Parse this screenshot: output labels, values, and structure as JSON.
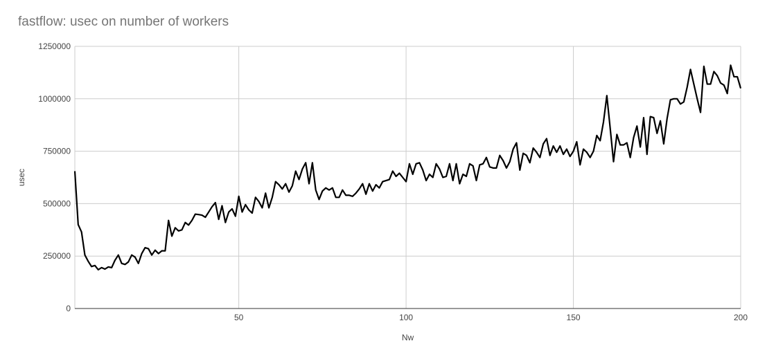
{
  "chart_data": {
    "type": "line",
    "title": "fastflow: usec on number of workers",
    "xlabel": "Nw",
    "ylabel": "usec",
    "xlim": [
      1,
      200
    ],
    "ylim": [
      0,
      1250000
    ],
    "x_ticks": [
      50,
      100,
      150,
      200
    ],
    "y_ticks": [
      0,
      250000,
      500000,
      750000,
      1000000,
      1250000
    ],
    "grid": true,
    "line_color": "#000000",
    "series": [
      {
        "x": [
          1,
          2,
          3,
          4,
          5,
          6,
          7,
          8,
          9,
          10,
          11,
          12,
          13,
          14,
          15,
          16,
          17,
          18,
          19,
          20,
          21,
          22,
          23,
          24,
          25,
          26,
          27,
          28,
          29,
          30,
          31,
          32,
          33,
          34,
          35,
          36,
          37,
          38,
          39,
          40,
          41,
          42,
          43,
          44,
          45,
          46,
          47,
          48,
          49,
          50,
          51,
          52,
          53,
          54,
          55,
          56,
          57,
          58,
          59,
          60,
          61,
          62,
          63,
          64,
          65,
          66,
          67,
          68,
          69,
          70,
          71,
          72,
          73,
          74,
          75,
          76,
          77,
          78,
          79,
          80,
          81,
          82,
          83,
          84,
          85,
          86,
          87,
          88,
          89,
          90,
          91,
          92,
          93,
          94,
          95,
          96,
          97,
          98,
          99,
          100,
          101,
          102,
          103,
          104,
          105,
          106,
          107,
          108,
          109,
          110,
          111,
          112,
          113,
          114,
          115,
          116,
          117,
          118,
          119,
          120,
          121,
          122,
          123,
          124,
          125,
          126,
          127,
          128,
          129,
          130,
          131,
          132,
          133,
          134,
          135,
          136,
          137,
          138,
          139,
          140,
          141,
          142,
          143,
          144,
          145,
          146,
          147,
          148,
          149,
          150,
          151,
          152,
          153,
          154,
          155,
          156,
          157,
          158,
          159,
          160,
          161,
          162,
          163,
          164,
          165,
          166,
          167,
          168,
          169,
          170,
          171,
          172,
          173,
          174,
          175,
          176,
          177,
          178,
          179,
          180,
          181,
          182,
          183,
          184,
          185,
          186,
          187,
          188,
          189,
          190,
          191,
          192,
          193,
          194,
          195,
          196,
          197,
          198,
          199,
          200
        ],
        "values": [
          655000,
          400000,
          365000,
          255000,
          225000,
          200000,
          205000,
          185000,
          195000,
          188000,
          198000,
          195000,
          230000,
          255000,
          215000,
          210000,
          222000,
          255000,
          245000,
          215000,
          262000,
          290000,
          285000,
          255000,
          278000,
          262000,
          275000,
          275000,
          420000,
          345000,
          385000,
          370000,
          375000,
          410000,
          398000,
          420000,
          450000,
          448000,
          445000,
          435000,
          460000,
          485000,
          505000,
          425000,
          490000,
          410000,
          460000,
          475000,
          440000,
          535000,
          460000,
          495000,
          470000,
          455000,
          530000,
          510000,
          480000,
          550000,
          480000,
          530000,
          605000,
          590000,
          570000,
          595000,
          555000,
          585000,
          655000,
          615000,
          665000,
          695000,
          595000,
          695000,
          565000,
          520000,
          560000,
          575000,
          565000,
          575000,
          530000,
          530000,
          565000,
          540000,
          540000,
          535000,
          550000,
          570000,
          595000,
          545000,
          595000,
          560000,
          590000,
          575000,
          605000,
          610000,
          615000,
          655000,
          630000,
          645000,
          625000,
          605000,
          690000,
          640000,
          690000,
          695000,
          660000,
          610000,
          640000,
          625000,
          690000,
          665000,
          625000,
          630000,
          690000,
          610000,
          690000,
          595000,
          640000,
          630000,
          690000,
          680000,
          610000,
          685000,
          690000,
          720000,
          675000,
          670000,
          670000,
          730000,
          705000,
          670000,
          700000,
          760000,
          790000,
          660000,
          740000,
          730000,
          695000,
          765000,
          745000,
          720000,
          785000,
          810000,
          730000,
          775000,
          745000,
          775000,
          735000,
          760000,
          725000,
          750000,
          795000,
          685000,
          760000,
          745000,
          720000,
          750000,
          825000,
          800000,
          890000,
          1015000,
          860000,
          700000,
          830000,
          780000,
          780000,
          790000,
          720000,
          815000,
          870000,
          770000,
          910000,
          735000,
          915000,
          910000,
          835000,
          895000,
          785000,
          905000,
          995000,
          1000000,
          1000000,
          975000,
          985000,
          1055000,
          1140000,
          1070000,
          1000000,
          935000,
          1155000,
          1070000,
          1070000,
          1130000,
          1110000,
          1075000,
          1065000,
          1025000,
          1160000,
          1105000,
          1105000,
          1050000
        ]
      }
    ]
  }
}
